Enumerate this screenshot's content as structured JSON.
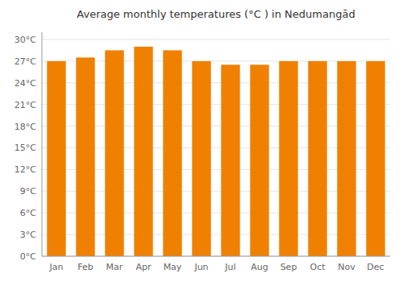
{
  "chart_data": {
    "type": "bar",
    "title": "Average monthly temperatures (°C ) in Nedumangād",
    "categories": [
      "Jan",
      "Feb",
      "Mar",
      "Apr",
      "May",
      "Jun",
      "Jul",
      "Aug",
      "Sep",
      "Oct",
      "Nov",
      "Dec"
    ],
    "values": [
      27.0,
      27.5,
      28.5,
      29.0,
      28.5,
      27.0,
      26.5,
      26.5,
      27.0,
      27.0,
      27.0,
      27.0
    ],
    "color": "#F08000",
    "ylim": [
      0,
      31
    ],
    "yticks": [
      {
        "value": 0,
        "label": "0°C"
      },
      {
        "value": 3,
        "label": "3°C"
      },
      {
        "value": 6,
        "label": "6°C"
      },
      {
        "value": 9,
        "label": "9°C"
      },
      {
        "value": 12,
        "label": "12°C"
      },
      {
        "value": 15,
        "label": "15°C"
      },
      {
        "value": 18,
        "label": "18°C"
      },
      {
        "value": 21,
        "label": "21°C"
      },
      {
        "value": 24,
        "label": "24°C"
      },
      {
        "value": 27,
        "label": "27°C"
      },
      {
        "value": 30,
        "label": "30°C"
      }
    ],
    "grid": true
  }
}
